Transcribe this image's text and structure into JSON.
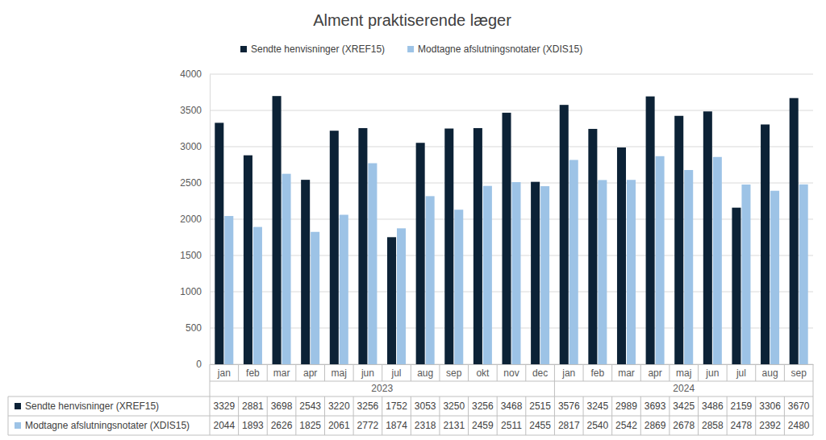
{
  "chart_data": {
    "type": "bar",
    "title": "Alment praktiserende læger",
    "category_groups": [
      {
        "label": "2023",
        "categories": [
          "jan",
          "feb",
          "mar",
          "apr",
          "maj",
          "jun",
          "jul",
          "aug",
          "sep",
          "okt",
          "nov",
          "dec"
        ]
      },
      {
        "label": "2024",
        "categories": [
          "jan",
          "feb",
          "mar",
          "apr",
          "maj",
          "jun",
          "jul",
          "aug",
          "sep"
        ]
      }
    ],
    "series": [
      {
        "name": "Sendte henvisninger (XREF15)",
        "color": "#0c2236",
        "values": [
          3329,
          2881,
          3698,
          2543,
          3220,
          3256,
          1752,
          3053,
          3250,
          3256,
          3468,
          2515,
          3576,
          3245,
          2989,
          3693,
          3425,
          3486,
          2159,
          3306,
          3670
        ]
      },
      {
        "name": "Modtagne afslutningsnotater (XDIS15)",
        "color": "#9dc3e6",
        "values": [
          2044,
          1893,
          2626,
          1825,
          2061,
          2772,
          1874,
          2318,
          2131,
          2459,
          2511,
          2455,
          2817,
          2540,
          2542,
          2869,
          2678,
          2858,
          2478,
          2392,
          2480
        ]
      }
    ],
    "ylim": [
      0,
      4000
    ],
    "yticks": [
      0,
      500,
      1000,
      1500,
      2000,
      2500,
      3000,
      3500,
      4000
    ],
    "grid": true,
    "legend": "top"
  }
}
